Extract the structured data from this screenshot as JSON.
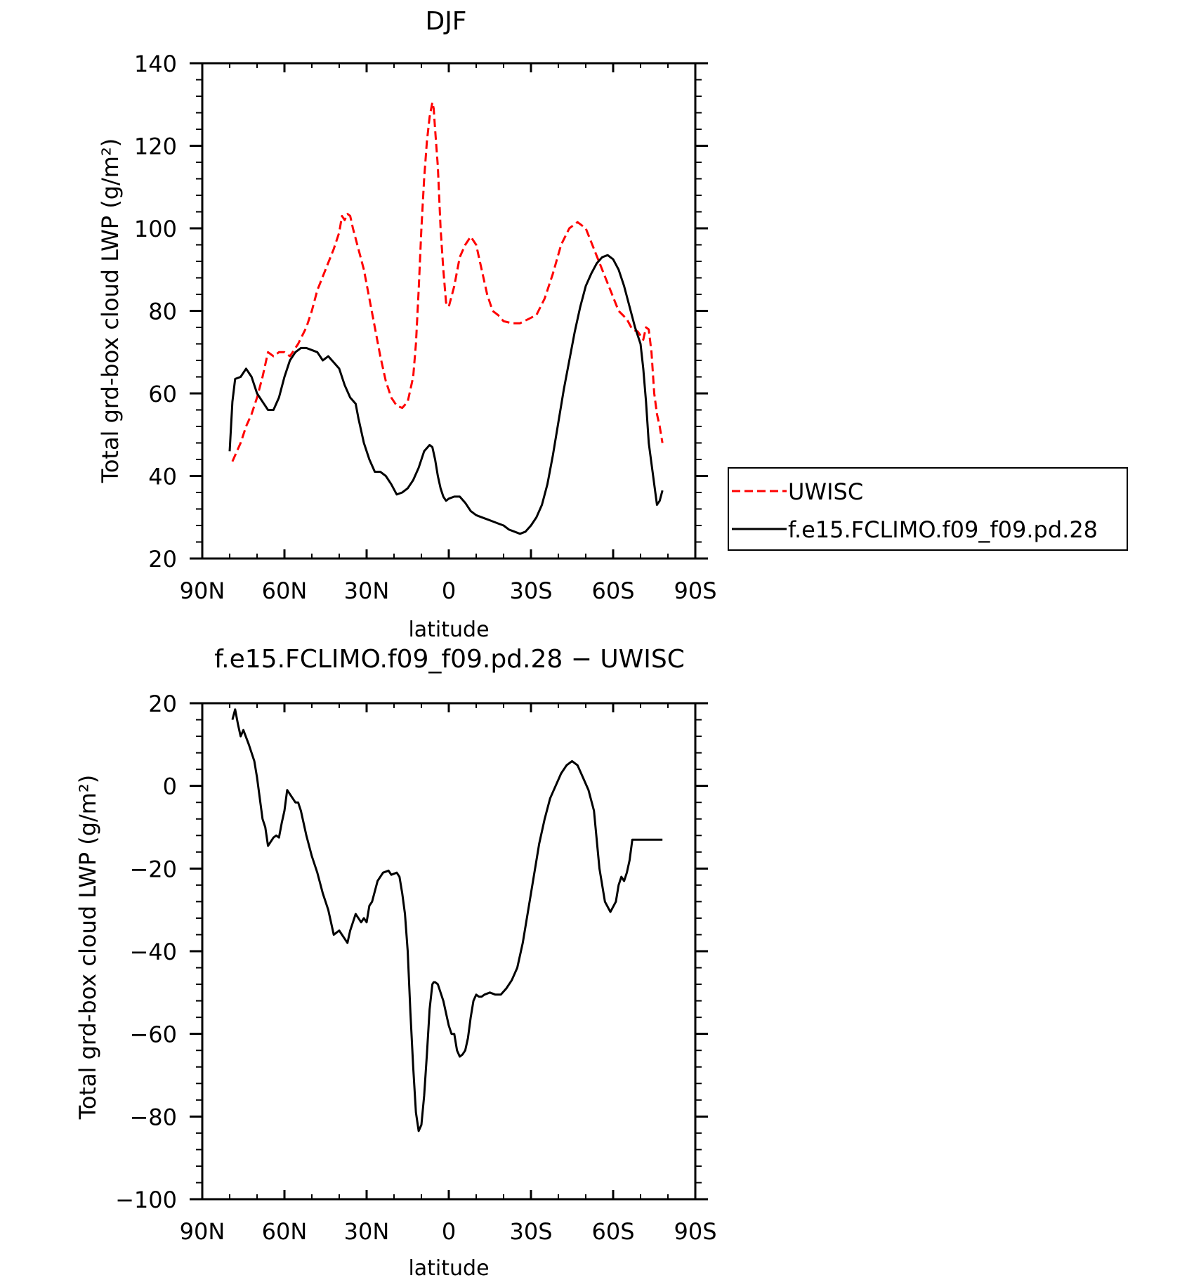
{
  "colors": {
    "obs": "#ff0000",
    "model": "#000000",
    "axis": "#000000"
  },
  "chart_data": [
    {
      "type": "line",
      "title": "DJF",
      "xlabel": "latitude",
      "ylabel": "Total grd-box cloud LWP (g/m²)",
      "xticks": [
        "90N",
        "60N",
        "30N",
        "0",
        "30S",
        "60S",
        "90S"
      ],
      "yticks": [
        "20",
        "40",
        "60",
        "80",
        "100",
        "120",
        "140"
      ],
      "xlim": [
        90,
        -90
      ],
      "ylim": [
        20,
        140
      ],
      "grid": false,
      "legend_position": "right",
      "series": [
        {
          "name": "UWISC",
          "color": "#ff0000",
          "dash": true,
          "x": [
            79,
            76,
            74,
            72,
            70,
            68,
            67,
            66,
            64,
            62,
            60,
            58,
            55,
            52,
            50,
            48,
            45,
            42,
            40,
            39,
            38,
            37,
            36,
            35,
            33,
            31,
            29,
            27,
            25,
            23,
            21,
            19,
            17,
            15,
            13,
            12,
            11,
            10,
            9,
            8,
            7,
            6,
            5.5,
            5,
            4,
            3,
            2,
            1,
            0,
            -2,
            -4,
            -6,
            -8,
            -10,
            -12,
            -14,
            -16,
            -18,
            -20,
            -23,
            -26,
            -29,
            -32,
            -35,
            -38,
            -41,
            -44,
            -47,
            -50,
            -53,
            -56,
            -59,
            -62,
            -65,
            -67,
            -69,
            -70,
            -71,
            -72,
            -73,
            -74,
            -75,
            -76,
            -77,
            -78
          ],
          "y": [
            43.5,
            48,
            52,
            55,
            59,
            64,
            67,
            70,
            69,
            70,
            70,
            69,
            72,
            76,
            80,
            85,
            90,
            95,
            99,
            103,
            102,
            103.5,
            103,
            100,
            95,
            90,
            83,
            76,
            69,
            63,
            59,
            57,
            56.5,
            58,
            64,
            72,
            85,
            100,
            112,
            121,
            127,
            130.5,
            129,
            124,
            115,
            100,
            90,
            82,
            81,
            86,
            93,
            96,
            98,
            96,
            90,
            84,
            80,
            79,
            77.5,
            77,
            77,
            78,
            79,
            83,
            89,
            96,
            100,
            101.5,
            100,
            95,
            90,
            85,
            80,
            78,
            75.5,
            75,
            74,
            73,
            76,
            75.5,
            70,
            60,
            55,
            52,
            48
          ]
        },
        {
          "name": "f.e15.FCLIMO.f09_f09.pd.28",
          "color": "#000000",
          "dash": false,
          "x": [
            80,
            79,
            78,
            76,
            74,
            72,
            70,
            68,
            66,
            64,
            62,
            60,
            58,
            56,
            54,
            52,
            50,
            48,
            46,
            44,
            42,
            40,
            38,
            36,
            34,
            33,
            31,
            29,
            27,
            25,
            23,
            21,
            19,
            17,
            15,
            13,
            11,
            9,
            7,
            6,
            5,
            4,
            3,
            2,
            1,
            0,
            -2,
            -4,
            -6,
            -8,
            -10,
            -12,
            -14,
            -16,
            -18,
            -20,
            -22,
            -24,
            -26,
            -28,
            -30,
            -32,
            -34,
            -36,
            -38,
            -40,
            -42,
            -44,
            -46,
            -48,
            -50,
            -52,
            -54,
            -56,
            -58,
            -60,
            -62,
            -64,
            -66,
            -68,
            -70,
            -71,
            -72,
            -73,
            -74,
            -75,
            -76,
            -77,
            -78
          ],
          "y": [
            46,
            58,
            63.5,
            64,
            66,
            64,
            60,
            58,
            56,
            56,
            59,
            64,
            68,
            70,
            71,
            71,
            70.5,
            70,
            68,
            69,
            67.5,
            66,
            62,
            59,
            57.5,
            54,
            48,
            44,
            41,
            41,
            40,
            38,
            35.5,
            36,
            37,
            39,
            42,
            46,
            47.5,
            47,
            44,
            40,
            37,
            35,
            34,
            34.5,
            35,
            35,
            33.5,
            31.5,
            30.5,
            30,
            29.5,
            29,
            28.5,
            28,
            27,
            26.5,
            26,
            26.5,
            28,
            30,
            33,
            38,
            45,
            53,
            61,
            68,
            75,
            81,
            86,
            89,
            91.5,
            93,
            93.5,
            92.5,
            90,
            86,
            81,
            76,
            72,
            66,
            58,
            48,
            43,
            38,
            33,
            34,
            36.5
          ]
        }
      ]
    },
    {
      "type": "line",
      "title": "f.e15.FCLIMO.f09_f09.pd.28 − UWISC",
      "xlabel": "latitude",
      "ylabel": "Total grd-box cloud LWP (g/m²)",
      "xticks": [
        "90N",
        "60N",
        "30N",
        "0",
        "30S",
        "60S",
        "90S"
      ],
      "yticks": [
        "−100",
        "−80",
        "−60",
        "−40",
        "−20",
        "0",
        "20"
      ],
      "xlim": [
        90,
        -90
      ],
      "ylim": [
        -100,
        20
      ],
      "grid": false,
      "series": [
        {
          "name": "",
          "color": "#000000",
          "dash": false,
          "x": [
            79,
            78,
            77,
            76,
            75,
            73,
            71,
            70,
            69,
            68,
            67,
            66,
            64,
            63,
            62,
            61,
            60,
            59,
            58,
            56,
            55,
            54,
            52,
            50,
            48,
            46,
            44,
            42,
            40,
            39,
            38,
            37,
            36,
            35,
            34,
            32,
            31,
            30,
            29,
            28,
            26,
            25,
            24,
            22,
            21,
            19,
            18,
            17,
            16,
            15,
            14,
            13,
            12,
            11,
            10,
            9,
            8,
            7,
            6,
            5.5,
            5,
            4,
            3,
            2,
            1,
            0,
            -1,
            -2,
            -3,
            -4,
            -5,
            -6,
            -7,
            -8,
            -9,
            -10,
            -11,
            -12,
            -13,
            -15,
            -17,
            -19,
            -21,
            -23,
            -25,
            -27,
            -29,
            -31,
            -33,
            -35,
            -37,
            -39,
            -41,
            -43,
            -45,
            -47,
            -49,
            -51,
            -53,
            -55,
            -57,
            -59,
            -61,
            -62,
            -63,
            -64,
            -65,
            -66,
            -67,
            -68,
            -69,
            -70,
            -71,
            -72,
            -73,
            -74,
            -75,
            -76,
            -77,
            -78
          ],
          "y": [
            16,
            18.5,
            15,
            12,
            13.5,
            10,
            6,
            2,
            -3,
            -8,
            -10,
            -14.5,
            -12.5,
            -12,
            -12.5,
            -9,
            -6,
            -1,
            -2,
            -4,
            -4,
            -6,
            -12,
            -17,
            -21,
            -26,
            -30,
            -36,
            -35,
            -36,
            -37,
            -38,
            -35,
            -33,
            -31,
            -33,
            -32,
            -33,
            -29,
            -28,
            -23,
            -22,
            -21,
            -20.5,
            -21.5,
            -21,
            -22,
            -26,
            -31,
            -40,
            -55,
            -68,
            -79,
            -83.5,
            -82,
            -75,
            -65,
            -54,
            -48,
            -47.5,
            -47.5,
            -48,
            -50,
            -52,
            -55,
            -58,
            -60,
            -60,
            -64,
            -65.5,
            -65,
            -64,
            -61,
            -56,
            -52,
            -50.5,
            -51,
            -51,
            -50.5,
            -50,
            -50.5,
            -50.5,
            -49,
            -47,
            -44,
            -38,
            -30,
            -22,
            -14,
            -8,
            -3,
            0,
            3,
            5,
            6,
            5,
            2,
            -1,
            -6,
            -20,
            -28,
            -30.5,
            -28,
            -24,
            -22,
            -23,
            -21,
            -18,
            -13,
            -13,
            -13,
            -13,
            -13,
            -13,
            -13,
            -13,
            -13,
            -13,
            -13,
            -13
          ]
        }
      ]
    }
  ]
}
